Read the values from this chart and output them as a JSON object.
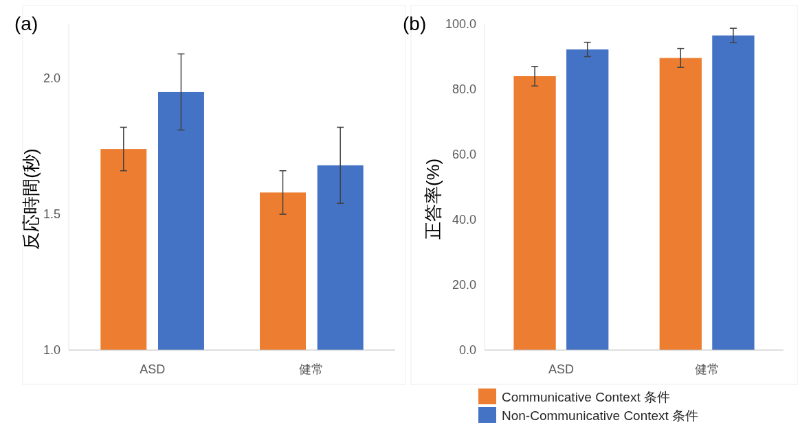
{
  "chart_data": [
    {
      "type": "bar",
      "title": "(a)",
      "ylabel": "反応時間(秒)",
      "categories": [
        "ASD",
        "健常"
      ],
      "ylim": [
        1,
        2.2
      ],
      "yticks": [
        {
          "value": 1,
          "label": "1.0"
        },
        {
          "value": 1.5,
          "label": "1.5"
        },
        {
          "value": 2,
          "label": "2.0"
        }
      ],
      "grid": false,
      "legend": false,
      "series": [
        {
          "color": "#ed7d31",
          "values": [
            1.74,
            1.58
          ],
          "errors": [
            0.08,
            0.08
          ]
        },
        {
          "color": "#4472c4",
          "values": [
            1.95,
            1.68
          ],
          "errors": [
            0.14,
            0.14
          ]
        }
      ]
    },
    {
      "type": "bar",
      "title": "(b)",
      "ylabel": "正答率(%)",
      "categories": [
        "ASD",
        "健常"
      ],
      "ylim": [
        0,
        100
      ],
      "yticks": [
        {
          "value": 0,
          "label": "0.0"
        },
        {
          "value": 20,
          "label": "20.0"
        },
        {
          "value": 40,
          "label": "40.0"
        },
        {
          "value": 60,
          "label": "60.0"
        },
        {
          "value": 80,
          "label": "80.0"
        },
        {
          "value": 100,
          "label": "100.0"
        }
      ],
      "grid": false,
      "legend": "bottom",
      "series": [
        {
          "name": "Communicative Context 条件",
          "color": "#ed7d31",
          "values": [
            84,
            89.6
          ],
          "errors": [
            3,
            2.9
          ]
        },
        {
          "name": "Non-Communicative Context 条件",
          "color": "#4472c4",
          "values": [
            92.2,
            96.5
          ],
          "errors": [
            2.2,
            2.2
          ]
        }
      ]
    }
  ]
}
